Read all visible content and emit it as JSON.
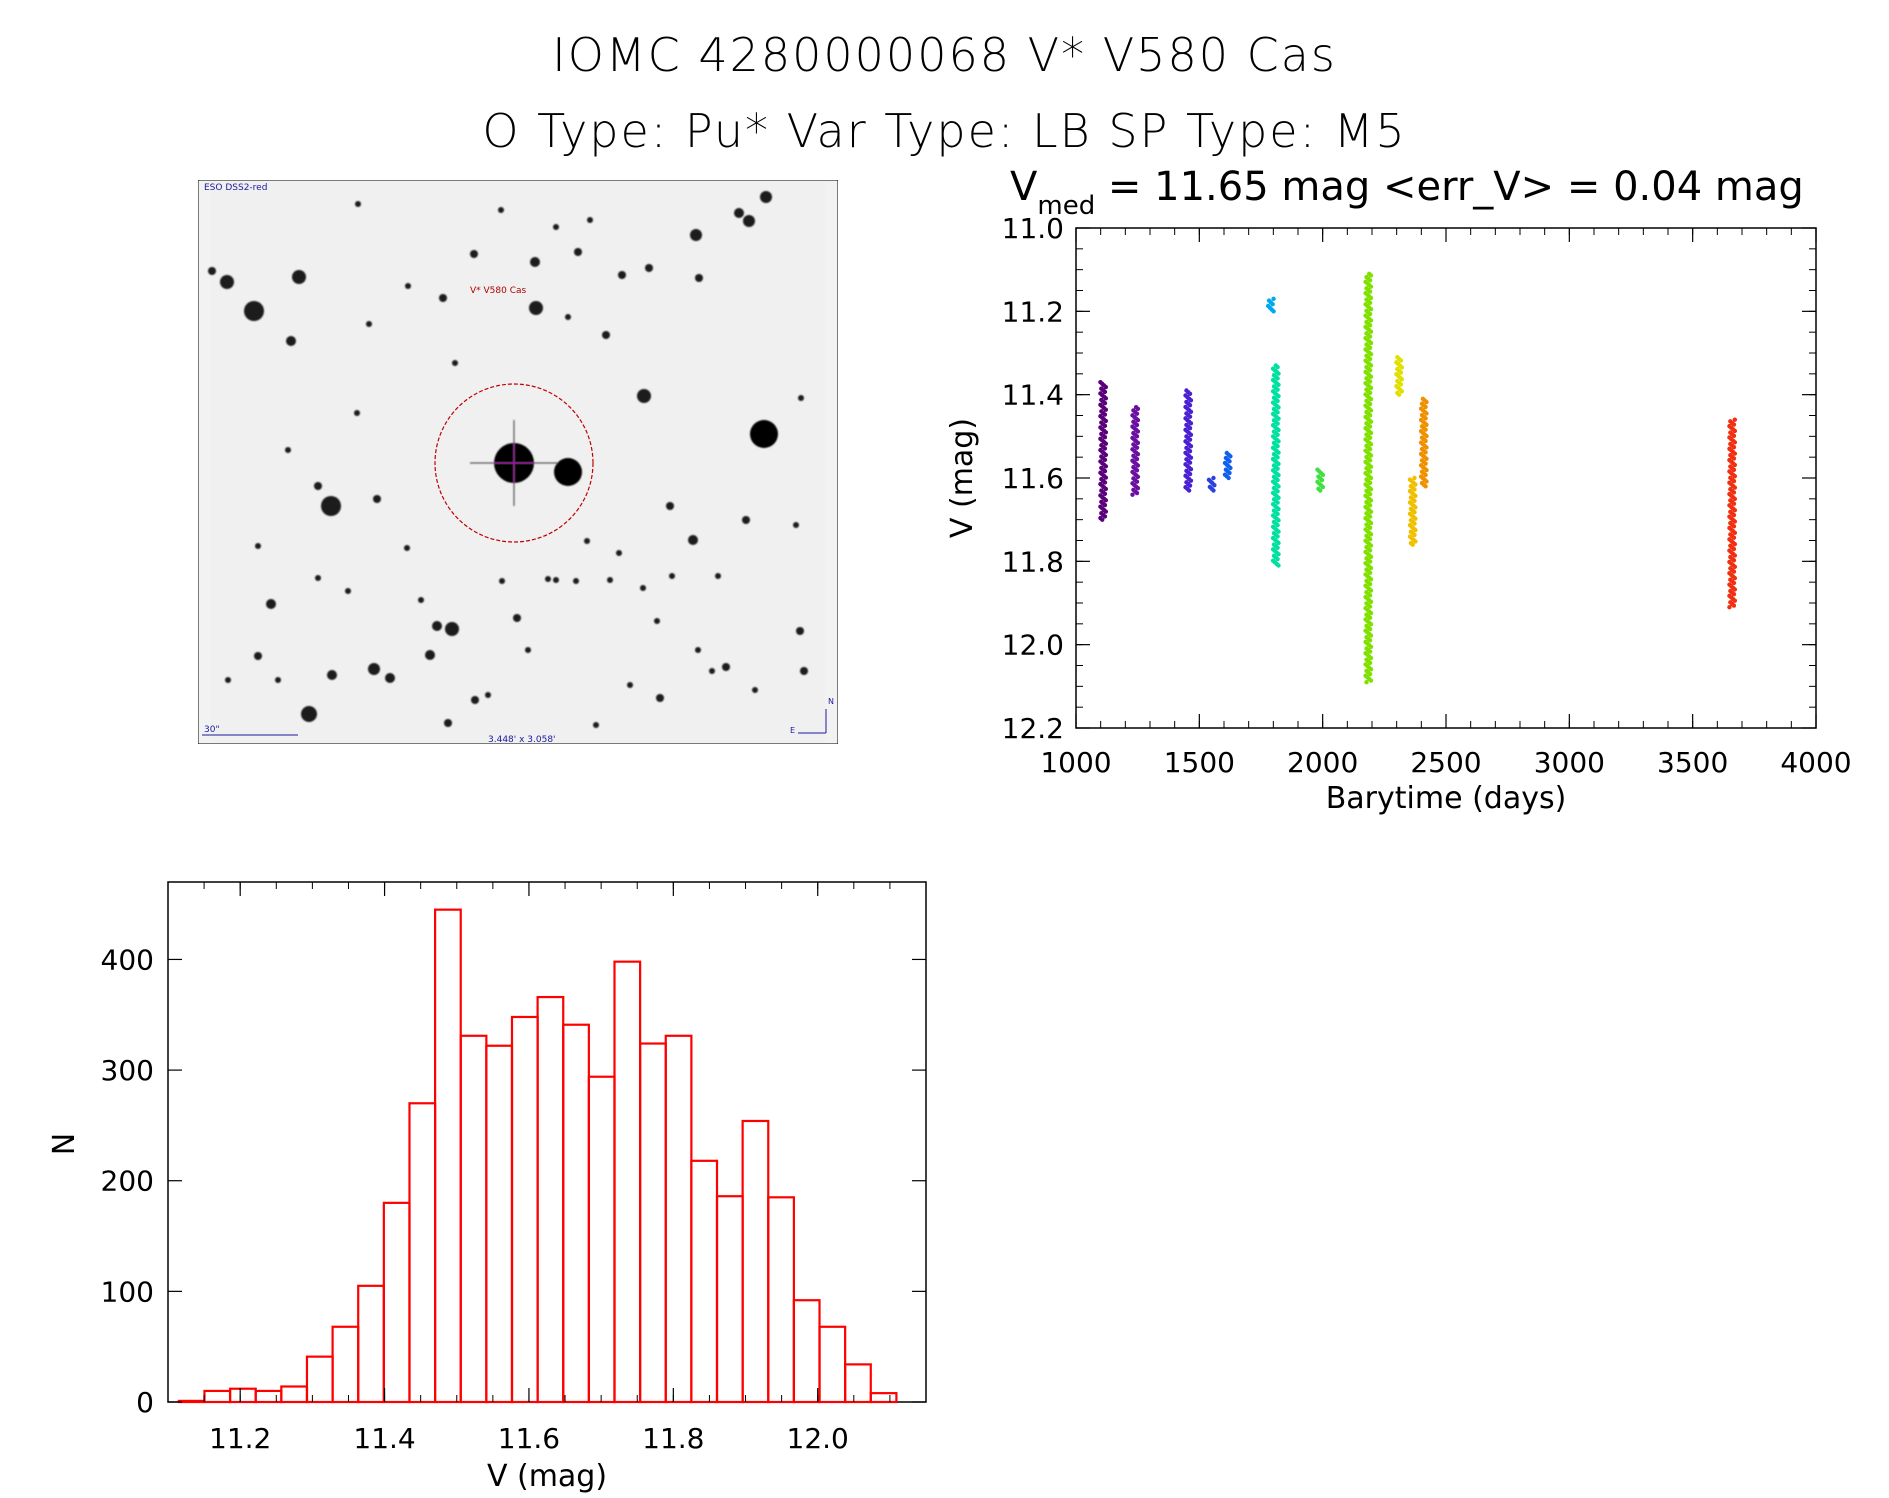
{
  "header": {
    "line1": "IOMC 4280000068   V* V580 Cas",
    "line2": "O Type: Pu*  Var Type: LB  SP Type: M5"
  },
  "image_panel": {
    "survey_label": "ESO DSS2-red",
    "target_label": "V* V580 Cas",
    "scale_label": "30\"",
    "fov_label": "3.448' x 3.058'",
    "compass_n": "N",
    "compass_e": "E",
    "label_color_blue": "#1a1aa0",
    "label_color_red": "#b00000"
  },
  "chart_data": [
    {
      "type": "scatter",
      "title": "V_med = 11.65 mag <err_V> = 0.04 mag",
      "title_parts": {
        "v": "V",
        "sub": "med",
        "rest": " = 11.65 mag <err_V> = 0.04 mag"
      },
      "xlabel": "Barytime (days)",
      "ylabel": "V (mag)",
      "xlim": [
        1000,
        4000
      ],
      "ylim": [
        12.2,
        11.0
      ],
      "y_inverted": true,
      "xticks": [
        1000,
        1500,
        2000,
        2500,
        3000,
        3500,
        4000
      ],
      "yticks": [
        "11.0",
        "11.2",
        "11.4",
        "11.6",
        "11.8",
        "12.0",
        "12.2"
      ],
      "series": [
        {
          "x": 1110,
          "ymin": 11.37,
          "ymax": 11.7,
          "color": "#5a007a"
        },
        {
          "x": 1240,
          "ymin": 11.43,
          "ymax": 11.64,
          "color": "#6a10a0"
        },
        {
          "x": 1455,
          "ymin": 11.39,
          "ymax": 11.63,
          "color": "#4a20d0"
        },
        {
          "x": 1550,
          "ymin": 11.6,
          "ymax": 11.63,
          "color": "#2a40e0"
        },
        {
          "x": 1615,
          "ymin": 11.54,
          "ymax": 11.6,
          "color": "#1060f0"
        },
        {
          "x": 1790,
          "ymin": 11.17,
          "ymax": 11.2,
          "color": "#00a8f0"
        },
        {
          "x": 1810,
          "ymin": 11.33,
          "ymax": 11.81,
          "color": "#00e0a0"
        },
        {
          "x": 1990,
          "ymin": 11.58,
          "ymax": 11.63,
          "color": "#40e040"
        },
        {
          "x": 2185,
          "ymin": 11.11,
          "ymax": 12.09,
          "color": "#80e000"
        },
        {
          "x": 2310,
          "ymin": 11.31,
          "ymax": 11.4,
          "color": "#e0e000"
        },
        {
          "x": 2365,
          "ymin": 11.6,
          "ymax": 11.76,
          "color": "#f0c000"
        },
        {
          "x": 2410,
          "ymin": 11.41,
          "ymax": 11.62,
          "color": "#f09000"
        },
        {
          "x": 3660,
          "ymin": 11.46,
          "ymax": 11.91,
          "color": "#f03010"
        }
      ]
    },
    {
      "type": "bar",
      "subtype": "histogram",
      "xlabel": "V (mag)",
      "ylabel": "N",
      "xlim": [
        11.1,
        12.15
      ],
      "ylim": [
        0,
        470
      ],
      "xticks": [
        "11.2",
        "11.4",
        "11.6",
        "11.8",
        "12.0"
      ],
      "yticks": [
        "0",
        "100",
        "200",
        "300",
        "400"
      ],
      "bin_width": 0.0355,
      "bin_start": 11.115,
      "values": [
        1,
        10,
        12,
        10,
        14,
        41,
        68,
        105,
        180,
        270,
        445,
        331,
        322,
        348,
        366,
        341,
        294,
        398,
        324,
        331,
        218,
        186,
        254,
        185,
        92,
        68,
        34,
        8
      ],
      "color": "#ff0000"
    }
  ]
}
